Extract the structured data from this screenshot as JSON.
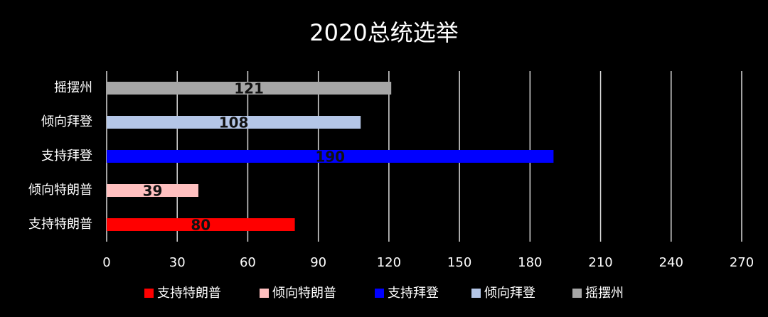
{
  "chart_data": {
    "type": "bar",
    "orientation": "horizontal",
    "title": "2020总统选举",
    "categories": [
      "支持特朗普",
      "倾向特朗普",
      "支持拜登",
      "倾向拜登",
      "摇摆州"
    ],
    "values": [
      80,
      39,
      190,
      108,
      121
    ],
    "colors": [
      "#ff0000",
      "#ffc0c0",
      "#0000ff",
      "#b4c6e7",
      "#a6a6a6"
    ],
    "xlim": [
      0,
      270
    ],
    "xticks": [
      0,
      30,
      60,
      90,
      120,
      150,
      180,
      210,
      240,
      270
    ],
    "grid": true,
    "legend": "bottom"
  }
}
